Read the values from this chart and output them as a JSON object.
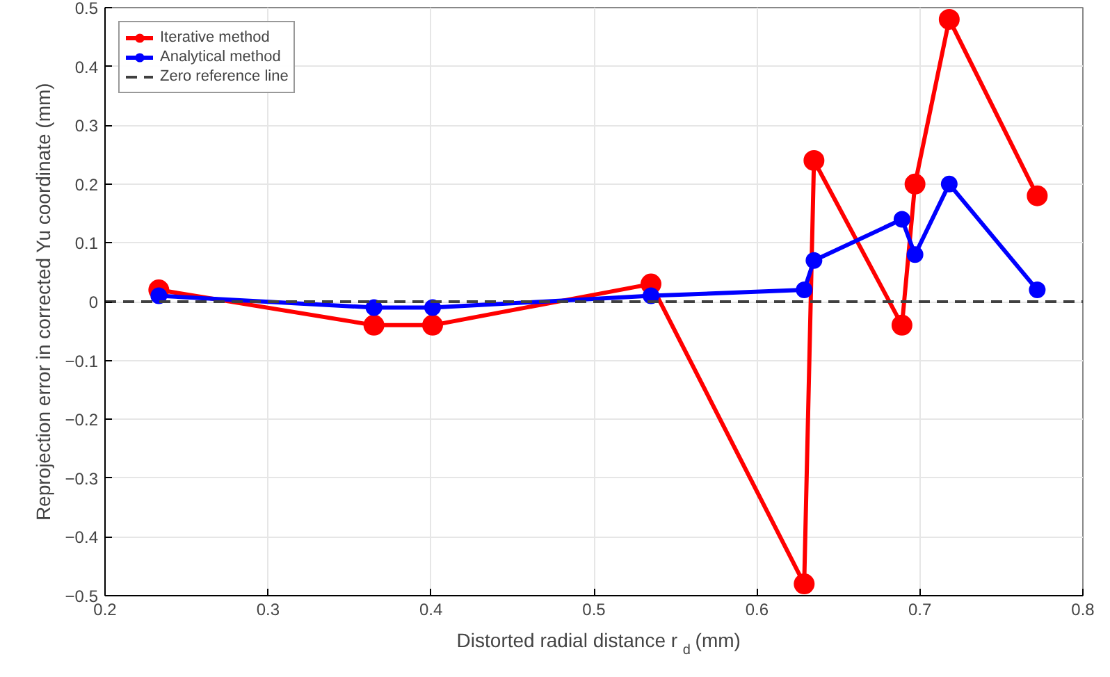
{
  "chart_data": {
    "type": "line",
    "xlabel": "Distorted radial distance r$_{d}$ (mm)",
    "ylabel": "Reprojection error in corrected Yu coordinate (mm)",
    "x": [
      0.233,
      0.365,
      0.401,
      0.535,
      0.629,
      0.635,
      0.689,
      0.697,
      0.718,
      0.772
    ],
    "series": [
      {
        "name": "Iterative method",
        "color": "#ff0000",
        "values": [
          0.02,
          -0.04,
          -0.04,
          0.03,
          -0.48,
          0.24,
          -0.04,
          0.2,
          0.48,
          0.18
        ]
      },
      {
        "name": "Analytical method",
        "color": "#0000ff",
        "values": [
          0.01,
          -0.01,
          -0.01,
          0.01,
          0.02,
          0.07,
          0.14,
          0.08,
          0.2,
          0.02
        ]
      }
    ],
    "ref_lines": [
      {
        "axis": "y",
        "value": 0,
        "label": "Zero reference line",
        "color": "#404040",
        "line_style": "dashed"
      }
    ],
    "xlim": [
      0.2,
      0.8
    ],
    "xticks": [
      0.2,
      0.3,
      0.4,
      0.5,
      0.6,
      0.7,
      0.8
    ],
    "ylim": [
      -0.5,
      0.5
    ],
    "yticks": [
      -0.5,
      -0.4,
      -0.3,
      -0.2,
      -0.1,
      0,
      0.1,
      0.2,
      0.3,
      0.4,
      0.5
    ],
    "grid": true,
    "legend": "top left",
    "marker": "circle",
    "line_style": "solid"
  }
}
